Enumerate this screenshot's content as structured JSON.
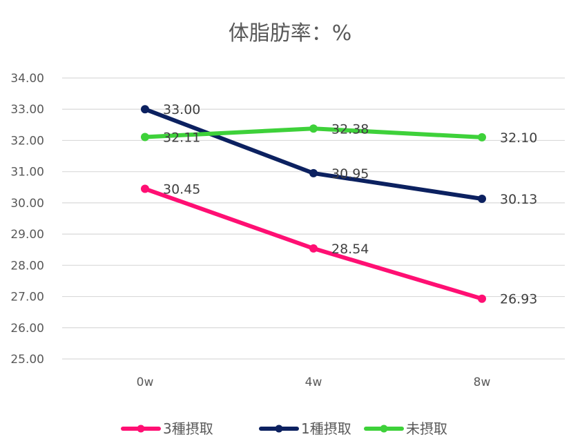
{
  "chart_data": {
    "type": "line",
    "title": "体脂肪率：%",
    "categories": [
      "0w",
      "4w",
      "8w"
    ],
    "ylim": [
      25,
      34
    ],
    "y_ticks": [
      "25.00",
      "26.00",
      "27.00",
      "28.00",
      "29.00",
      "30.00",
      "31.00",
      "32.00",
      "33.00",
      "34.00"
    ],
    "grid": true,
    "legend_position": "bottom",
    "series": [
      {
        "name": "3種摂取",
        "color": "#ff0f73",
        "values": [
          30.45,
          28.54,
          26.93
        ],
        "labels": [
          "30.45",
          "28.54",
          "26.93"
        ]
      },
      {
        "name": "1種摂取",
        "color": "#0c2160",
        "values": [
          33.0,
          30.95,
          30.13
        ],
        "labels": [
          "33.00",
          "30.95",
          "30.13"
        ]
      },
      {
        "name": "未摂取",
        "color": "#3ed13a",
        "values": [
          32.11,
          32.38,
          32.1
        ],
        "labels": [
          "32.11",
          "32.38",
          "32.10"
        ]
      }
    ]
  }
}
